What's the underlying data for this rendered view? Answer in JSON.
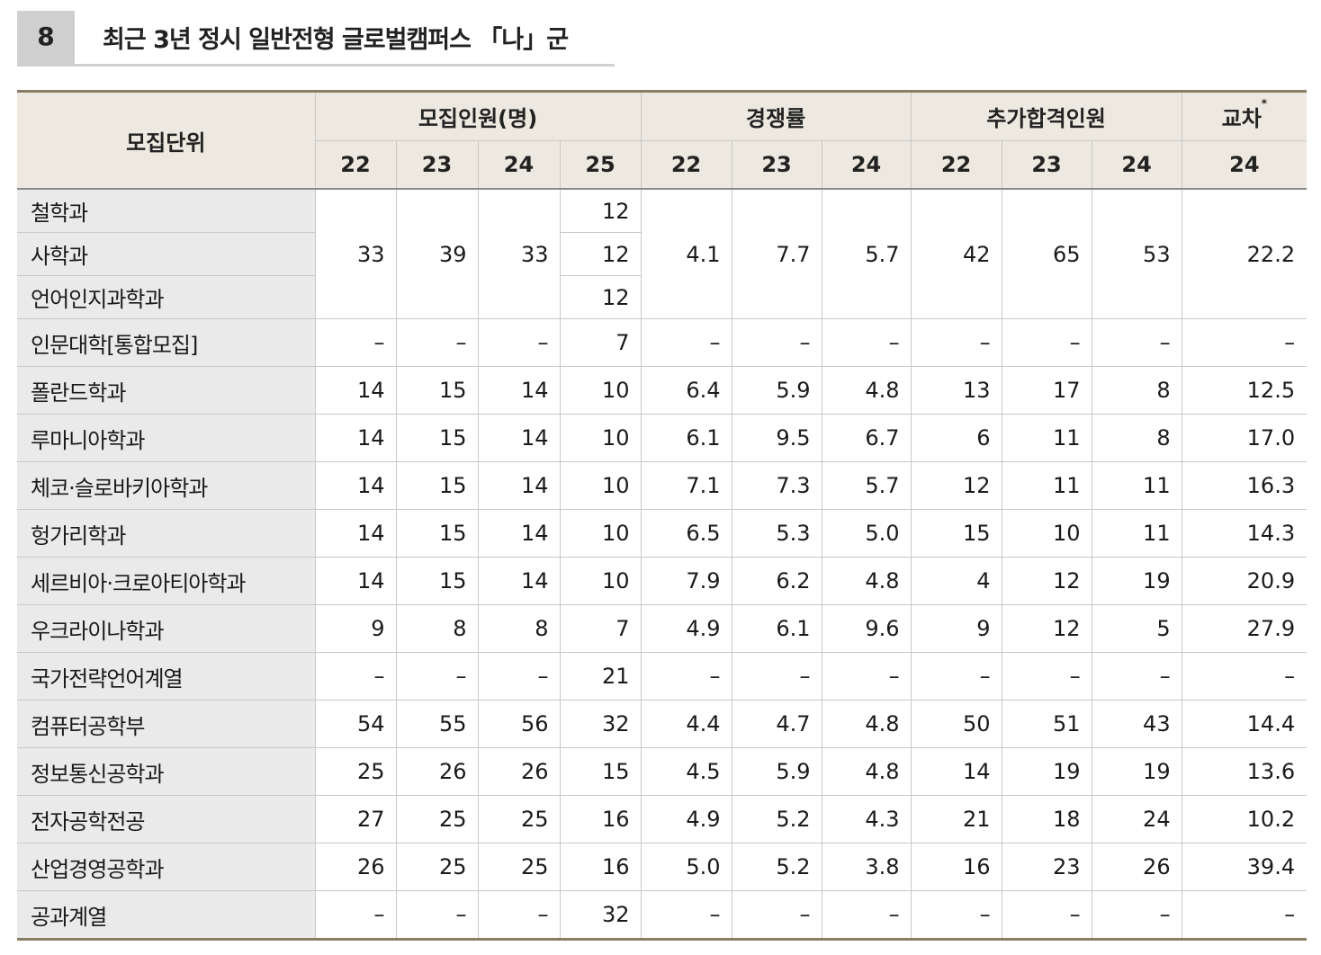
{
  "section": {
    "number": "8",
    "title": "최근 3년 정시 일반전형 글로벌캠퍼스 「나」군"
  },
  "table": {
    "unit_header": "모집단위",
    "groups": [
      {
        "label": "모집인원(명)",
        "years": [
          "22",
          "23",
          "24",
          "25"
        ]
      },
      {
        "label": "경쟁률",
        "years": [
          "22",
          "23",
          "24"
        ]
      },
      {
        "label": "추가합격인원",
        "years": [
          "22",
          "23",
          "24"
        ]
      },
      {
        "label": "교차",
        "mark": "*",
        "years": [
          "24"
        ]
      }
    ],
    "merged_block": {
      "names": [
        "철학과",
        "사학과",
        "언어인지과학과"
      ],
      "quota_25": [
        "12",
        "12",
        "12"
      ],
      "values": [
        "33",
        "39",
        "33",
        "4.1",
        "7.7",
        "5.7",
        "42",
        "65",
        "53",
        "22.2"
      ]
    },
    "rows": [
      {
        "name": "인문대학[통합모집]",
        "values": [
          "–",
          "–",
          "–",
          "7",
          "–",
          "–",
          "–",
          "–",
          "–",
          "–",
          "–"
        ]
      },
      {
        "name": "폴란드학과",
        "values": [
          "14",
          "15",
          "14",
          "10",
          "6.4",
          "5.9",
          "4.8",
          "13",
          "17",
          "8",
          "12.5"
        ]
      },
      {
        "name": "루마니아학과",
        "values": [
          "14",
          "15",
          "14",
          "10",
          "6.1",
          "9.5",
          "6.7",
          "6",
          "11",
          "8",
          "17.0"
        ]
      },
      {
        "name": "체코·슬로바키아학과",
        "values": [
          "14",
          "15",
          "14",
          "10",
          "7.1",
          "7.3",
          "5.7",
          "12",
          "11",
          "11",
          "16.3"
        ]
      },
      {
        "name": "헝가리학과",
        "values": [
          "14",
          "15",
          "14",
          "10",
          "6.5",
          "5.3",
          "5.0",
          "15",
          "10",
          "11",
          "14.3"
        ]
      },
      {
        "name": "세르비아·크로아티아학과",
        "values": [
          "14",
          "15",
          "14",
          "10",
          "7.9",
          "6.2",
          "4.8",
          "4",
          "12",
          "19",
          "20.9"
        ]
      },
      {
        "name": "우크라이나학과",
        "values": [
          "9",
          "8",
          "8",
          "7",
          "4.9",
          "6.1",
          "9.6",
          "9",
          "12",
          "5",
          "27.9"
        ]
      },
      {
        "name": "국가전략언어계열",
        "values": [
          "–",
          "–",
          "–",
          "21",
          "–",
          "–",
          "–",
          "–",
          "–",
          "–",
          "–"
        ]
      },
      {
        "name": "컴퓨터공학부",
        "values": [
          "54",
          "55",
          "56",
          "32",
          "4.4",
          "4.7",
          "4.8",
          "50",
          "51",
          "43",
          "14.4"
        ]
      },
      {
        "name": "정보통신공학과",
        "values": [
          "25",
          "26",
          "26",
          "15",
          "4.5",
          "5.9",
          "4.8",
          "14",
          "19",
          "19",
          "13.6"
        ]
      },
      {
        "name": "전자공학전공",
        "values": [
          "27",
          "25",
          "25",
          "16",
          "4.9",
          "5.2",
          "4.3",
          "21",
          "18",
          "24",
          "10.2"
        ]
      },
      {
        "name": "산업경영공학과",
        "values": [
          "26",
          "25",
          "25",
          "16",
          "5.0",
          "5.2",
          "3.8",
          "16",
          "23",
          "26",
          "39.4"
        ]
      },
      {
        "name": "공과계열",
        "values": [
          "–",
          "–",
          "–",
          "32",
          "–",
          "–",
          "–",
          "–",
          "–",
          "–",
          "–"
        ]
      }
    ]
  }
}
